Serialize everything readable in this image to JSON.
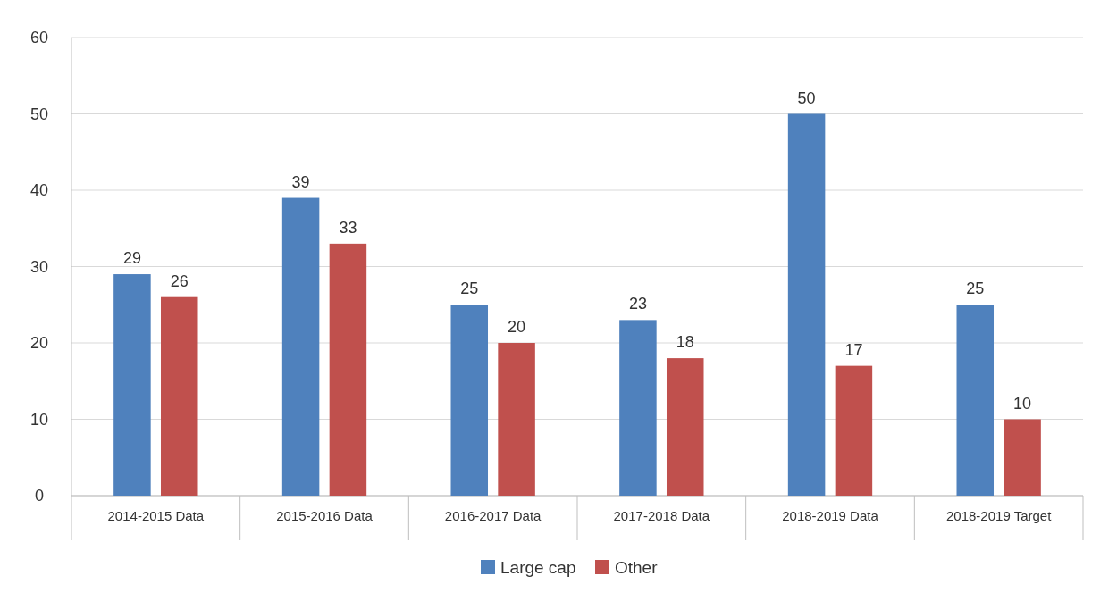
{
  "chart_data": {
    "type": "bar",
    "categories": [
      "2014-2015 Data",
      "2015-2016 Data",
      "2016-2017 Data",
      "2017-2018 Data",
      "2018-2019 Data",
      "2018-2019 Target"
    ],
    "series": [
      {
        "name": "Large cap",
        "color": "#4f81bd",
        "values": [
          29,
          39,
          25,
          23,
          50,
          25
        ]
      },
      {
        "name": "Other",
        "color": "#c0504d",
        "values": [
          26,
          33,
          20,
          18,
          17,
          10
        ]
      }
    ],
    "ylim": [
      0,
      60
    ],
    "yticks": [
      0,
      10,
      20,
      30,
      40,
      50,
      60
    ],
    "grid": "y",
    "legend": "bottom",
    "data_labels": true
  }
}
